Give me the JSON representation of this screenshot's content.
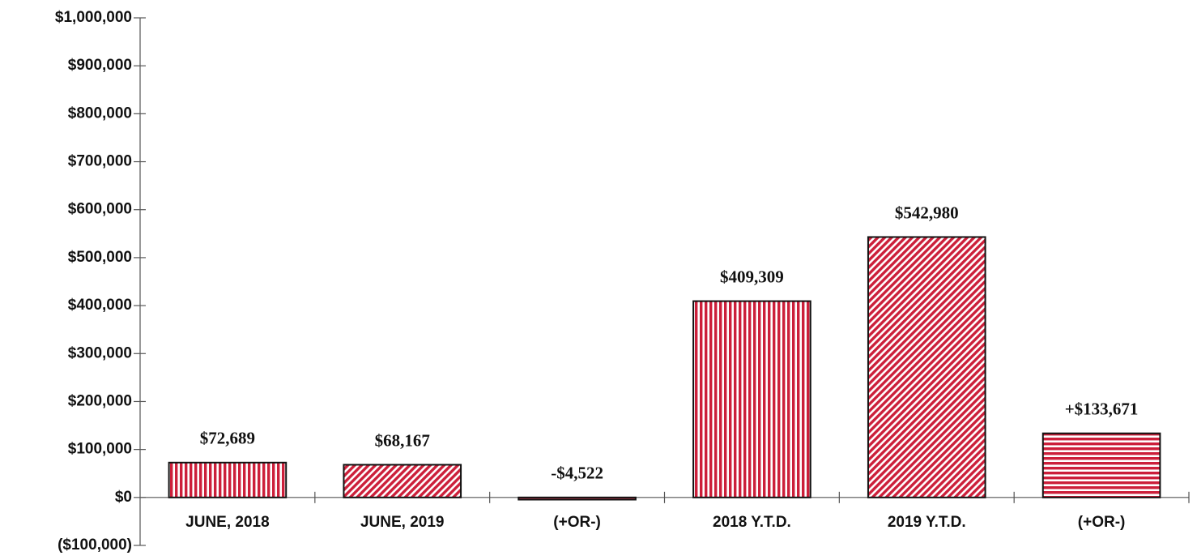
{
  "chart_data": {
    "type": "bar",
    "categories": [
      "JUNE, 2018",
      "JUNE, 2019",
      "(+OR-)",
      "2018 Y.T.D.",
      "2019 Y.T.D.",
      "(+OR-)"
    ],
    "values": [
      72689,
      68167,
      -4522,
      409309,
      542980,
      133671
    ],
    "value_labels": [
      "$72,689",
      "$68,167",
      "-$4,522",
      "$409,309",
      "$542,980",
      "+$133,671"
    ],
    "color": "#cc1f3a",
    "patterns": [
      "vertical",
      "diagonal",
      "horizontal",
      "vertical",
      "diagonal",
      "horizontal"
    ],
    "ylim": [
      -100000,
      1000000
    ],
    "yticks": [
      {
        "value": -100000,
        "label": "($100,000)"
      },
      {
        "value": 0,
        "label": "$0"
      },
      {
        "value": 100000,
        "label": "$100,000"
      },
      {
        "value": 200000,
        "label": "$200,000"
      },
      {
        "value": 300000,
        "label": "$300,000"
      },
      {
        "value": 400000,
        "label": "$400,000"
      },
      {
        "value": 500000,
        "label": "$500,000"
      },
      {
        "value": 600000,
        "label": "$600,000"
      },
      {
        "value": 700000,
        "label": "$700,000"
      },
      {
        "value": 800000,
        "label": "$800,000"
      },
      {
        "value": 900000,
        "label": "$900,000"
      },
      {
        "value": 1000000,
        "label": "$1,000,000"
      }
    ],
    "grid": false
  }
}
